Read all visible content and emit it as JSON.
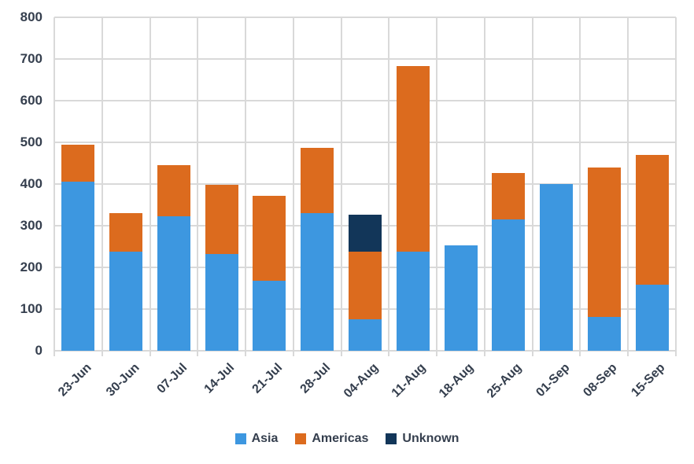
{
  "chart_data": {
    "type": "bar",
    "stacked": true,
    "title": "",
    "xlabel": "",
    "ylabel": "",
    "categories": [
      "23-Jun",
      "30-Jun",
      "07-Jul",
      "14-Jul",
      "21-Jul",
      "28-Jul",
      "04-Aug",
      "11-Aug",
      "18-Aug",
      "25-Aug",
      "01-Sep",
      "08-Sep",
      "15-Sep"
    ],
    "series": [
      {
        "name": "Asia",
        "color": "#3d97e0",
        "values": [
          405,
          238,
          323,
          233,
          168,
          330,
          76,
          238,
          252,
          315,
          400,
          81,
          159
        ]
      },
      {
        "name": "Americas",
        "color": "#dc6b1e",
        "values": [
          90,
          92,
          123,
          166,
          204,
          156,
          162,
          445,
          0,
          111,
          0,
          359,
          310
        ]
      },
      {
        "name": "Unknown",
        "color": "#123659",
        "values": [
          0,
          0,
          0,
          0,
          0,
          0,
          89,
          0,
          0,
          0,
          0,
          0,
          0
        ]
      }
    ],
    "ylim": [
      0,
      800
    ],
    "ytick_step": 100,
    "ytick_labels": [
      "0",
      "100",
      "200",
      "300",
      "400",
      "500",
      "600",
      "700",
      "800"
    ],
    "grid": true,
    "gridline_color": "#d9d9d9",
    "legend_position": "bottom"
  }
}
